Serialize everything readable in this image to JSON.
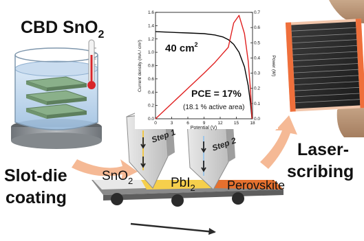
{
  "labels": {
    "cbd_title": "CBD SnO",
    "cbd_sub": "2",
    "slot_line1": "Slot-die",
    "slot_line2": "coating",
    "laser_line1": "Laser-",
    "laser_line2": "scribing",
    "layer_sno2": "SnO",
    "layer_sno2_sub": "2",
    "layer_pbi2": "PbI",
    "layer_pbi2_sub": "2",
    "layer_perovskite": "Perovskite",
    "step1": "Step 1",
    "step2": "Step 2"
  },
  "chart_data": {
    "type": "line",
    "annotations": [
      "40 cm²",
      "PCE = 17%",
      "(18.1 % active area)"
    ],
    "annotation_super": "2",
    "xlabel": "Potential (V)",
    "ylabel_left": "Current density (mA / cm²)",
    "ylabel_right": "Power (W)",
    "xlim": [
      0,
      18
    ],
    "ylim_left": [
      0,
      1.6
    ],
    "ylim_right": [
      0,
      0.7
    ],
    "x_ticks": [
      "0",
      "3",
      "6",
      "9",
      "12",
      "15",
      "18"
    ],
    "y_left_ticks": [
      "0.0",
      "0.2",
      "0.4",
      "0.6",
      "0.8",
      "1.0",
      "1.2",
      "1.4",
      "1.6"
    ],
    "y_right_ticks": [
      "0.0",
      "0.1",
      "0.2",
      "0.3",
      "0.4",
      "0.5",
      "0.6",
      "0.7"
    ],
    "series": [
      {
        "role": "current density",
        "color": "#000000",
        "x": [
          0,
          3,
          6,
          9,
          11,
          12.5,
          13.5,
          14.5,
          15.5,
          16.5,
          17.2,
          17.6,
          17.9
        ],
        "y": [
          1.31,
          1.3,
          1.29,
          1.28,
          1.26,
          1.23,
          1.19,
          1.12,
          1.0,
          0.78,
          0.5,
          0.25,
          0.0
        ]
      },
      {
        "role": "power",
        "color": "#e02020",
        "x": [
          0,
          3,
          6,
          9,
          11,
          12.5,
          13.5,
          14.5,
          15.5,
          16.5,
          17.2,
          17.6,
          17.9
        ],
        "y": [
          0.0,
          0.1,
          0.2,
          0.3,
          0.37,
          0.43,
          0.47,
          0.63,
          0.68,
          0.56,
          0.38,
          0.2,
          0.0
        ]
      }
    ]
  }
}
